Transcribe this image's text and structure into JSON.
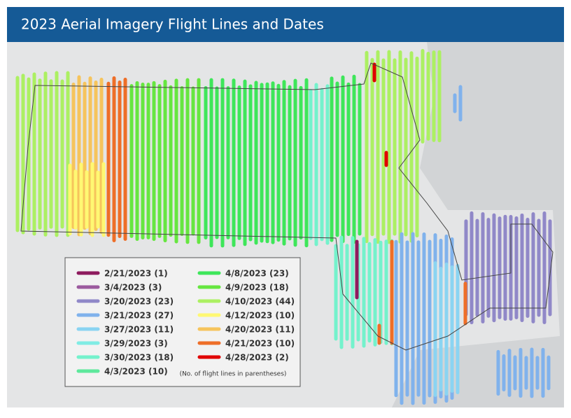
{
  "header": {
    "title": "2023 Aerial Imagery Flight Lines and Dates"
  },
  "legend": {
    "items": [
      {
        "label": "2/21/2023 (1)",
        "color": "#8e1b5e"
      },
      {
        "label": "3/4/2023 (3)",
        "color": "#9b5a9e"
      },
      {
        "label": "3/20/2023 (23)",
        "color": "#9088c8"
      },
      {
        "label": "3/21/2023 (27)",
        "color": "#80b2ec"
      },
      {
        "label": "3/27/2023 (11)",
        "color": "#8ad4f2"
      },
      {
        "label": "3/29/2023 (3)",
        "color": "#80ece4"
      },
      {
        "label": "3/30/2023 (18)",
        "color": "#74f2cc"
      },
      {
        "label": "4/3/2023 (10)",
        "color": "#5ee89c"
      },
      {
        "label": "4/8/2023 (23)",
        "color": "#3ee65a"
      },
      {
        "label": "4/9/2023 (18)",
        "color": "#66e640"
      },
      {
        "label": "4/10/2023 (44)",
        "color": "#acf062"
      },
      {
        "label": "4/12/2023 (10)",
        "color": "#fff872"
      },
      {
        "label": "4/20/2023 (11)",
        "color": "#f6c45c"
      },
      {
        "label": "4/21/2023 (10)",
        "color": "#ee6e28"
      },
      {
        "label": "4/28/2023 (2)",
        "color": "#e00000"
      }
    ],
    "note": "(No. of flight lines in parentheses)"
  }
}
